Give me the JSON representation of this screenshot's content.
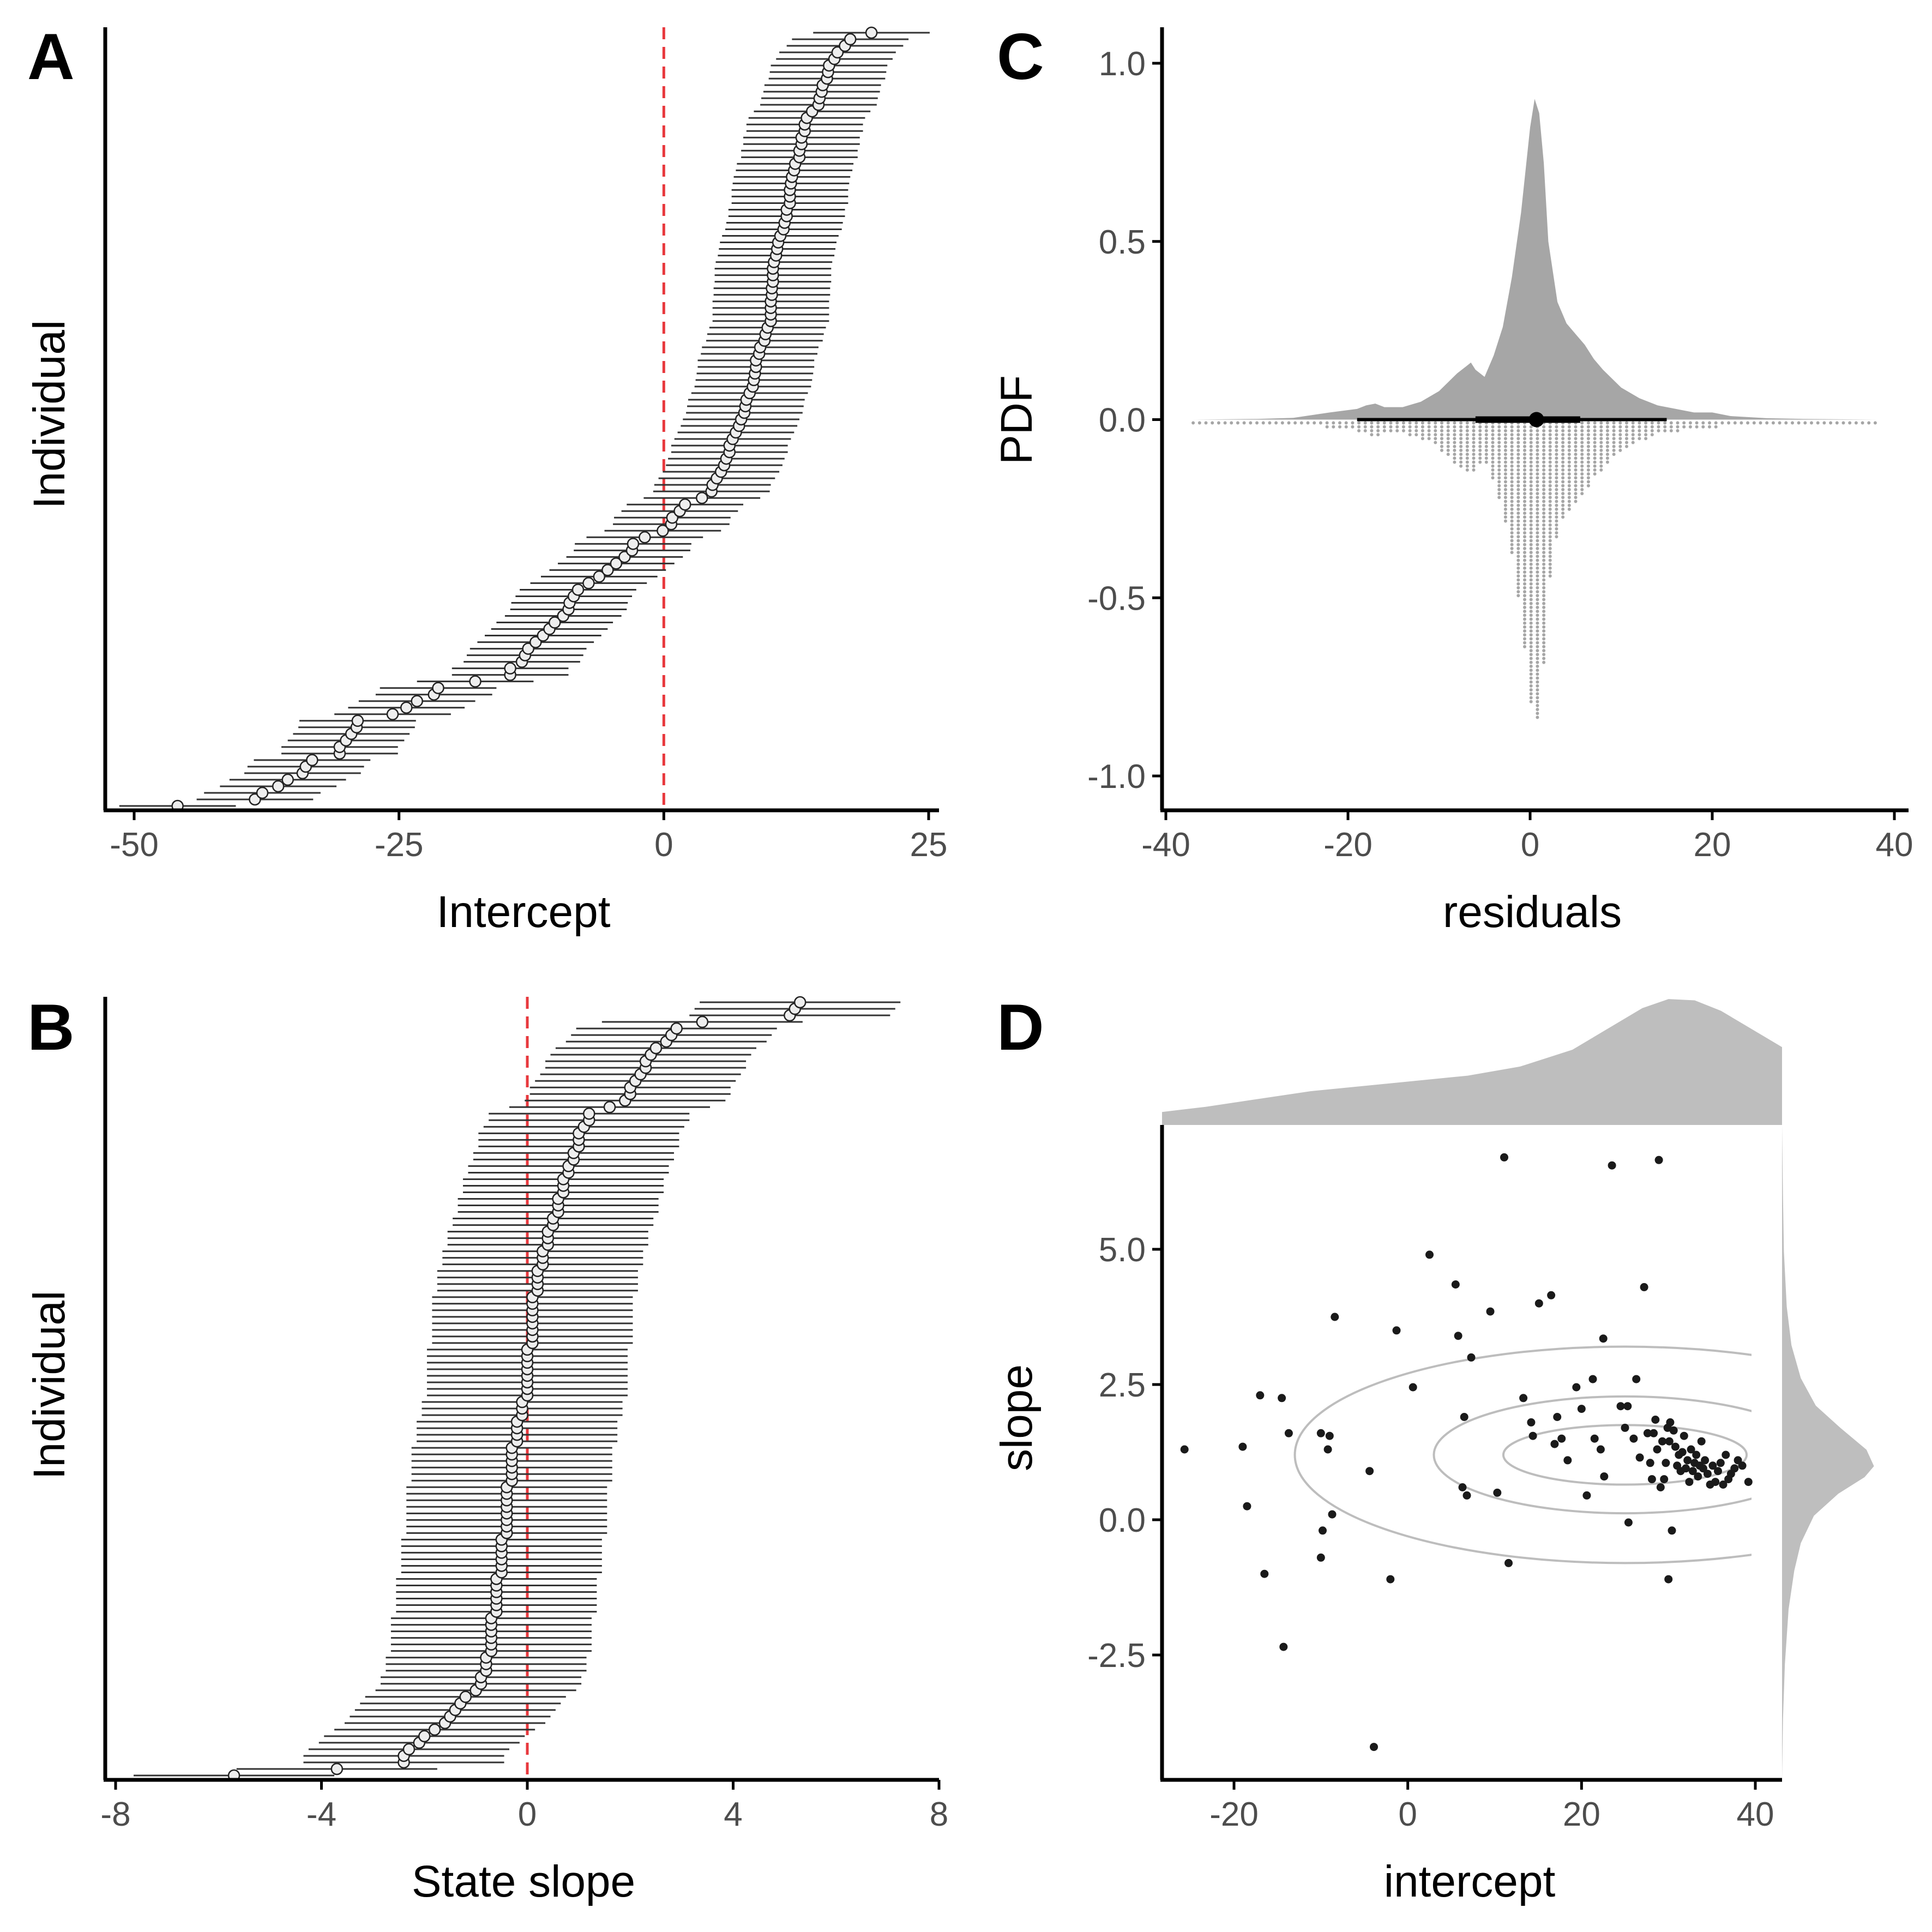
{
  "colors": {
    "axis": "#000000",
    "ref_line": "#e8383d",
    "error_bar": "#333333",
    "point_fill": "#eeeeee",
    "density_fill": "#a6a6a6",
    "dots": "#a6a6a6",
    "marginal_fill": "#bebebe",
    "contour": "#bdbdbd",
    "scatter_point": "#1a1a1a"
  },
  "chart_data": [
    {
      "panel": "A",
      "type": "forest",
      "xlabel": "Intercept",
      "ylabel": "Individual",
      "xlim": [
        -50,
        25
      ],
      "xticks": [
        "-50",
        "-25",
        "0",
        "25"
      ],
      "reference_line_x": 0,
      "n_individuals": 119,
      "ci_half_width": 5.5,
      "sorted_estimates": [
        -45.9,
        -38.6,
        -37.9,
        -36.4,
        -35.5,
        -34.1,
        -33.8,
        -33.2,
        -30.6,
        -30.6,
        -30.0,
        -29.5,
        -29.0,
        -28.9,
        -25.6,
        -24.3,
        -23.3,
        -21.7,
        -21.3,
        -17.8,
        -14.5,
        -14.5,
        -13.4,
        -13.1,
        -12.8,
        -12.1,
        -11.4,
        -10.8,
        -10.3,
        -9.5,
        -9.0,
        -8.9,
        -8.5,
        -8.1,
        -7.1,
        -6.1,
        -5.3,
        -4.5,
        -3.7,
        -3.0,
        -2.9,
        -1.8,
        -0.1,
        0.7,
        0.8,
        1.5,
        2.0,
        3.6,
        4.5,
        4.6,
        5.0,
        5.4,
        5.7,
        5.9,
        6.2,
        6.2,
        6.5,
        6.8,
        7.1,
        7.3,
        7.6,
        7.7,
        7.8,
        8.1,
        8.4,
        8.5,
        8.6,
        8.7,
        8.7,
        9.0,
        9.1,
        9.5,
        9.6,
        9.8,
        10.1,
        10.1,
        10.1,
        10.1,
        10.2,
        10.2,
        10.3,
        10.3,
        10.3,
        10.4,
        10.6,
        10.7,
        10.8,
        11.0,
        11.3,
        11.4,
        11.6,
        11.6,
        11.9,
        11.9,
        11.9,
        12.0,
        12.1,
        12.3,
        12.4,
        12.8,
        12.8,
        13.0,
        13.0,
        13.3,
        13.3,
        13.5,
        14.0,
        14.6,
        14.7,
        14.9,
        15.0,
        15.4,
        15.5,
        15.6,
        16.1,
        16.4,
        17.1,
        17.6,
        19.6
      ]
    },
    {
      "panel": "B",
      "type": "forest",
      "xlabel": "State slope",
      "ylabel": "Individual",
      "xlim": [
        -8,
        8
      ],
      "xticks": [
        "-8",
        "-4",
        "0",
        "4",
        "8"
      ],
      "reference_line_x": 0,
      "n_individuals": 119,
      "ci_half_width": 1.95,
      "sorted_estimates": [
        -5.7,
        -3.7,
        -2.4,
        -2.4,
        -2.3,
        -2.1,
        -2.0,
        -1.8,
        -1.6,
        -1.5,
        -1.4,
        -1.3,
        -1.2,
        -1.0,
        -0.9,
        -0.9,
        -0.8,
        -0.8,
        -0.8,
        -0.7,
        -0.7,
        -0.7,
        -0.7,
        -0.7,
        -0.7,
        -0.6,
        -0.6,
        -0.6,
        -0.6,
        -0.6,
        -0.6,
        -0.5,
        -0.5,
        -0.5,
        -0.5,
        -0.5,
        -0.5,
        -0.4,
        -0.4,
        -0.4,
        -0.4,
        -0.4,
        -0.4,
        -0.4,
        -0.4,
        -0.3,
        -0.3,
        -0.3,
        -0.3,
        -0.3,
        -0.3,
        -0.2,
        -0.2,
        -0.2,
        -0.2,
        -0.1,
        -0.1,
        -0.1,
        0.0,
        0.0,
        0.0,
        0.0,
        0.0,
        0.0,
        0.0,
        0.0,
        0.1,
        0.1,
        0.1,
        0.1,
        0.1,
        0.1,
        0.1,
        0.1,
        0.2,
        0.2,
        0.2,
        0.2,
        0.3,
        0.3,
        0.3,
        0.4,
        0.4,
        0.4,
        0.5,
        0.5,
        0.6,
        0.6,
        0.6,
        0.7,
        0.7,
        0.7,
        0.8,
        0.8,
        0.9,
        0.9,
        1.0,
        1.0,
        1.0,
        1.1,
        1.2,
        1.2,
        1.6,
        1.9,
        2.0,
        2.0,
        2.1,
        2.2,
        2.3,
        2.3,
        2.4,
        2.5,
        2.7,
        2.8,
        2.9,
        3.4,
        5.1,
        5.2,
        5.3
      ]
    },
    {
      "panel": "C",
      "type": "area",
      "xlabel": "residuals",
      "ylabel": "PDF",
      "xlim": [
        -40,
        40
      ],
      "ylim": [
        -1.0,
        1.0
      ],
      "xticks": [
        "-40",
        "-20",
        "0",
        "20",
        "40"
      ],
      "yticks": [
        "-1.0",
        "-0.5",
        "0.0",
        "0.5",
        "1.0"
      ],
      "density": {
        "x": [
          -37,
          -30,
          -26,
          -22,
          -19,
          -18,
          -17,
          -16,
          -14,
          -12,
          -10,
          -8,
          -7,
          -6.5,
          -6,
          -5,
          -4,
          -3,
          -2,
          -1,
          0,
          0.5,
          1,
          1.5,
          2,
          3,
          4,
          5,
          6,
          7,
          8,
          10,
          12,
          14,
          16,
          18,
          20,
          22,
          26,
          30,
          38
        ],
        "y": [
          0.0,
          0.002,
          0.005,
          0.02,
          0.03,
          0.04,
          0.045,
          0.035,
          0.035,
          0.05,
          0.08,
          0.13,
          0.15,
          0.16,
          0.14,
          0.12,
          0.18,
          0.26,
          0.4,
          0.58,
          0.82,
          0.9,
          0.86,
          0.72,
          0.5,
          0.33,
          0.27,
          0.24,
          0.21,
          0.17,
          0.14,
          0.09,
          0.06,
          0.04,
          0.03,
          0.02,
          0.02,
          0.01,
          0.004,
          0.002,
          0.0
        ]
      },
      "median": 0.7,
      "interval_66": [
        -6,
        5.5
      ],
      "interval_95": [
        -19,
        15
      ]
    },
    {
      "panel": "D",
      "type": "scatter",
      "xlabel": "intercept",
      "ylabel": "slope",
      "xlim": [
        -29,
        42
      ],
      "ylim": [
        -4.6,
        7.3
      ],
      "xticks": [
        "-20",
        "0",
        "20",
        "40"
      ],
      "yticks": [
        "-2.5",
        "0.0",
        "2.5",
        "5.0"
      ],
      "points": [
        [
          -25.7,
          1.3
        ],
        [
          -19.0,
          1.35
        ],
        [
          -18.5,
          0.25
        ],
        [
          -17.0,
          2.3
        ],
        [
          -16.5,
          -1.0
        ],
        [
          -14.5,
          2.25
        ],
        [
          -14.3,
          -2.35
        ],
        [
          -13.7,
          1.6
        ],
        [
          -10.0,
          1.6
        ],
        [
          -10.0,
          -0.7
        ],
        [
          -9.8,
          -0.2
        ],
        [
          -9.2,
          1.3
        ],
        [
          -9.0,
          1.55
        ],
        [
          -8.7,
          0.1
        ],
        [
          -8.4,
          3.75
        ],
        [
          -4.4,
          0.9
        ],
        [
          -3.9,
          -4.2
        ],
        [
          -2.0,
          -1.1
        ],
        [
          -1.3,
          3.5
        ],
        [
          0.6,
          2.45
        ],
        [
          2.5,
          4.9
        ],
        [
          5.5,
          4.35
        ],
        [
          5.8,
          3.4
        ],
        [
          6.3,
          0.6
        ],
        [
          6.5,
          1.9
        ],
        [
          6.8,
          0.45
        ],
        [
          7.3,
          3.0
        ],
        [
          9.5,
          3.85
        ],
        [
          10.3,
          0.5
        ],
        [
          11.1,
          6.7
        ],
        [
          11.6,
          -0.8
        ],
        [
          13.3,
          2.25
        ],
        [
          14.2,
          1.8
        ],
        [
          14.4,
          1.55
        ],
        [
          15.1,
          4.0
        ],
        [
          16.5,
          4.15
        ],
        [
          16.9,
          1.4
        ],
        [
          17.2,
          1.9
        ],
        [
          17.7,
          1.5
        ],
        [
          18.4,
          1.1
        ],
        [
          19.4,
          2.45
        ],
        [
          20.0,
          2.05
        ],
        [
          20.6,
          0.45
        ],
        [
          21.3,
          2.6
        ],
        [
          21.5,
          1.5
        ],
        [
          22.2,
          1.3
        ],
        [
          22.5,
          3.35
        ],
        [
          22.6,
          0.8
        ],
        [
          23.5,
          6.55
        ],
        [
          24.5,
          2.1
        ],
        [
          25.0,
          1.7
        ],
        [
          25.3,
          2.1
        ],
        [
          25.4,
          -0.05
        ],
        [
          26.0,
          1.5
        ],
        [
          26.3,
          2.6
        ],
        [
          26.7,
          1.15
        ],
        [
          27.2,
          4.3
        ],
        [
          27.6,
          1.6
        ],
        [
          27.9,
          1.05
        ],
        [
          28.1,
          0.75
        ],
        [
          28.3,
          1.6
        ],
        [
          28.5,
          1.85
        ],
        [
          28.7,
          1.3
        ],
        [
          28.9,
          6.65
        ],
        [
          29.1,
          0.6
        ],
        [
          29.3,
          1.45
        ],
        [
          29.5,
          0.75
        ],
        [
          29.7,
          1.05
        ],
        [
          29.9,
          1.7
        ],
        [
          30.0,
          -1.1
        ],
        [
          30.1,
          1.45
        ],
        [
          30.2,
          1.8
        ],
        [
          30.4,
          -0.2
        ],
        [
          30.6,
          1.65
        ],
        [
          30.8,
          1.35
        ],
        [
          31.0,
          1.0
        ],
        [
          31.2,
          1.2
        ],
        [
          31.4,
          0.9
        ],
        [
          31.6,
          1.25
        ],
        [
          31.8,
          1.55
        ],
        [
          32.0,
          0.95
        ],
        [
          32.2,
          1.1
        ],
        [
          32.4,
          0.7
        ],
        [
          32.6,
          1.3
        ],
        [
          32.8,
          0.9
        ],
        [
          33.0,
          1.05
        ],
        [
          33.2,
          1.2
        ],
        [
          33.4,
          0.8
        ],
        [
          33.6,
          1.0
        ],
        [
          33.8,
          1.45
        ],
        [
          34.0,
          0.95
        ],
        [
          34.2,
          1.1
        ],
        [
          34.5,
          0.85
        ],
        [
          34.8,
          0.65
        ],
        [
          35.1,
          1.0
        ],
        [
          35.4,
          0.7
        ],
        [
          35.7,
          0.9
        ],
        [
          36.0,
          1.05
        ],
        [
          36.3,
          0.65
        ],
        [
          36.6,
          1.2
        ],
        [
          36.9,
          0.75
        ],
        [
          37.2,
          0.85
        ],
        [
          37.6,
          0.95
        ],
        [
          38.0,
          1.1
        ],
        [
          38.5,
          1.0
        ],
        [
          39.2,
          0.7
        ]
      ],
      "contours": [
        {
          "cx": 25,
          "cy": 1.2,
          "rx": 14.0,
          "ry": 0.55
        },
        {
          "cx": 25,
          "cy": 1.2,
          "rx": 22.0,
          "ry": 1.08
        },
        {
          "cx": 25,
          "cy": 1.2,
          "rx": 38.0,
          "ry": 2.0
        }
      ],
      "marginal_x": {
        "x": [
          -29,
          -24,
          -18,
          -12,
          -6,
          0,
          6,
          12,
          18,
          22,
          26,
          29,
          32,
          35,
          38,
          42
        ],
        "density": [
          0.1,
          0.14,
          0.2,
          0.26,
          0.3,
          0.34,
          0.38,
          0.45,
          0.58,
          0.74,
          0.9,
          0.97,
          0.96,
          0.88,
          0.76,
          0.6
        ]
      },
      "marginal_y": {
        "y": [
          -4.6,
          -3.5,
          -2.5,
          -1.5,
          -0.8,
          -0.3,
          0.2,
          0.6,
          0.9,
          1.1,
          1.4,
          1.8,
          2.2,
          2.7,
          3.3,
          4,
          5,
          6,
          7.3
        ],
        "density": [
          0.0,
          0.01,
          0.03,
          0.07,
          0.13,
          0.2,
          0.34,
          0.6,
          0.88,
          0.98,
          0.9,
          0.62,
          0.36,
          0.2,
          0.1,
          0.05,
          0.02,
          0.01,
          0.0
        ]
      }
    }
  ],
  "panel_labels": {
    "A": "A",
    "B": "B",
    "C": "C",
    "D": "D"
  }
}
